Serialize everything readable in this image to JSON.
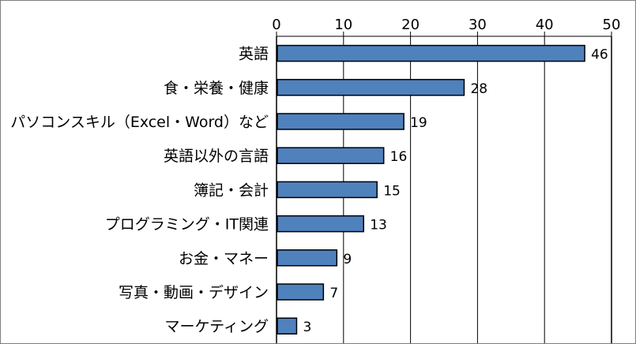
{
  "chart_data": {
    "type": "bar",
    "orientation": "horizontal",
    "categories": [
      "英語",
      "食・栄養・健康",
      "パソコンスキル（Excel・Word）など",
      "英語以外の言語",
      "簿記・会計",
      "プログラミング・IT関連",
      "お金・マネー",
      "写真・動画・デザイン",
      "マーケティング"
    ],
    "values": [
      46,
      28,
      19,
      16,
      15,
      13,
      9,
      7,
      3
    ],
    "value_labels": [
      "46",
      "28",
      "19",
      "16",
      "15",
      "13",
      "9",
      "7",
      "3"
    ],
    "xlim": [
      0,
      50
    ],
    "x_ticks": [
      0,
      10,
      20,
      30,
      40,
      50
    ],
    "x_tick_labels": [
      "0",
      "10",
      "20",
      "30",
      "40",
      "50"
    ],
    "x_axis_position": "top",
    "grid": "vertical",
    "legend": "none",
    "title": "",
    "xlabel": "",
    "ylabel": "",
    "colors": {
      "bar_fill": "#4f81bd",
      "bar_stroke": "#000000",
      "grid": "#000000",
      "frame": "#7f7f7f"
    }
  }
}
